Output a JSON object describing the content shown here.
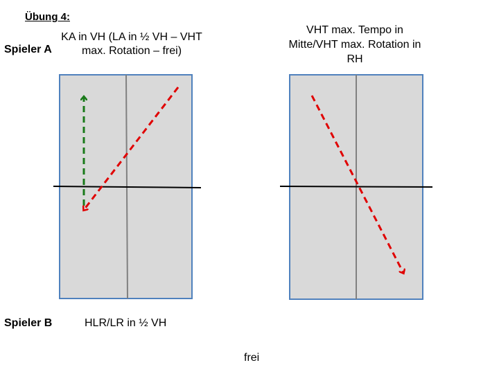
{
  "title": "Übung 4:",
  "player_a": "Spieler A",
  "player_b": "Spieler B",
  "left_table": {
    "caption": "KA in VH (LA in ½ VH – VHT max. Rotation – frei)"
  },
  "right_table": {
    "caption": "VHT max. Tempo in Mitte/VHT max. Rotation in RH"
  },
  "player_b_caption": "HLR/LR in ½ VH",
  "bottom_caption": "frei",
  "colors": {
    "table_fill": "#d9d9d9",
    "table_border": "#4f81bd",
    "center_line": "#808080",
    "net": "#000000",
    "arrow_red": "#e00000",
    "arrow_green": "#1a7a1a"
  }
}
